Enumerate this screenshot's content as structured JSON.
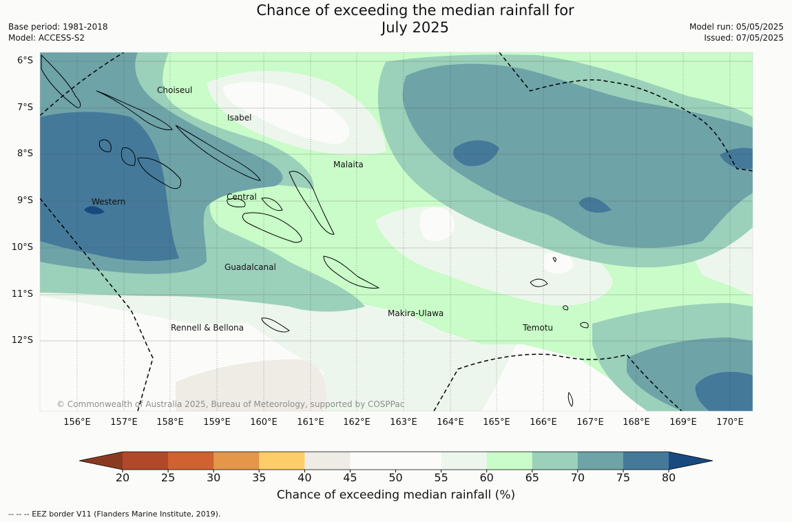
{
  "title": {
    "line1": "Chance of exceeding the median rainfall for",
    "line2": "July 2025"
  },
  "meta": {
    "base_period": "Base period: 1981-2018",
    "model": "Model: ACCESS-S2",
    "model_run": "Model run: 05/05/2025",
    "issued": "Issued: 07/05/2025"
  },
  "map": {
    "lat_labels": [
      "6°S",
      "7°S",
      "8°S",
      "9°S",
      "10°S",
      "11°S",
      "12°S"
    ],
    "lon_labels": [
      "156°E",
      "157°E",
      "158°E",
      "159°E",
      "160°E",
      "161°E",
      "162°E",
      "163°E",
      "164°E",
      "165°E",
      "166°E",
      "167°E",
      "168°E",
      "169°E",
      "170°E"
    ],
    "places": [
      "Choiseul",
      "Isabel",
      "Malaita",
      "Western",
      "Central",
      "Guadalcanal",
      "Makira-Ulawa",
      "Temotu",
      "Rennell & Bellona"
    ],
    "copyright": "© Commonwealth of Australia 2025, Bureau of Meteorology, supported by COSPPac"
  },
  "colorbar": {
    "ticks": [
      "20",
      "25",
      "30",
      "35",
      "40",
      "45",
      "50",
      "55",
      "60",
      "65",
      "70",
      "75",
      "80"
    ],
    "colors": [
      "#8b3a22",
      "#b1482a",
      "#cf6230",
      "#e49649",
      "#fdcd67",
      "#efece6",
      "#fbfcfa",
      "#fbfcfa",
      "#edf6ec",
      "#c9fcc8",
      "#9bd0ba",
      "#6ea3a8",
      "#44799a",
      "#184a80"
    ],
    "label": "Chance of exceeding median rainfall (%)"
  },
  "footnote": "--  --  -- EEZ border V11 (Flanders Marine Institute, 2019)."
}
